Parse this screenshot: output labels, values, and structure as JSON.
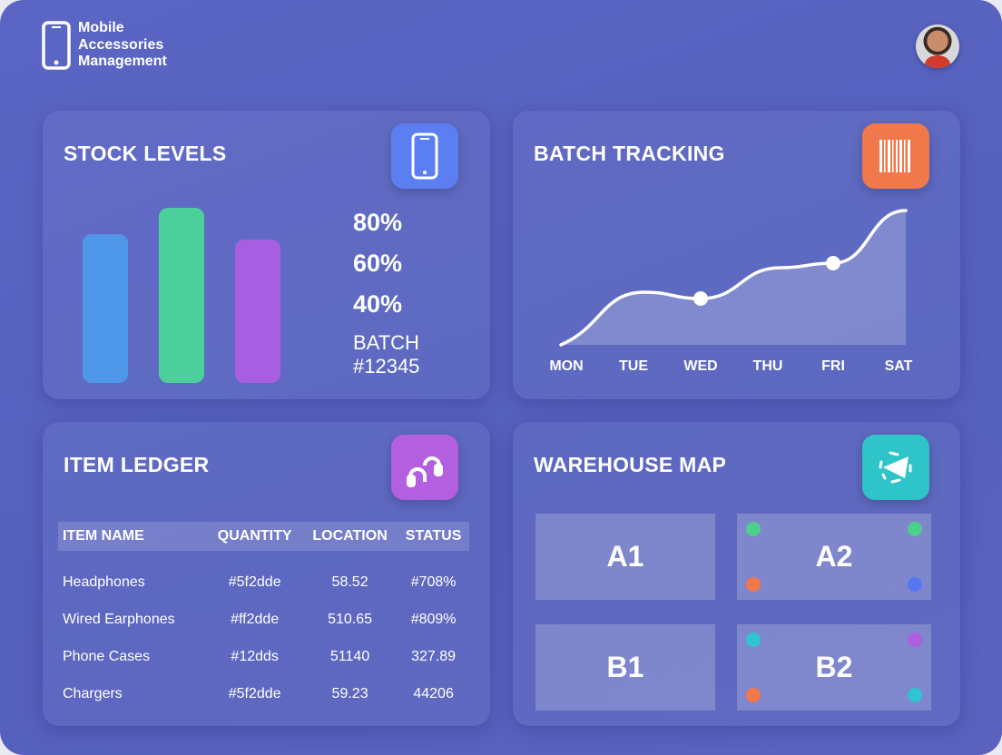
{
  "header": {
    "title_lines": [
      "Mobile",
      "Accessories",
      "Management"
    ],
    "logo_icon": "smartphone-icon",
    "avatar": "user-avatar"
  },
  "stock": {
    "title": "STOCK LEVELS",
    "icon": "smartphone-icon",
    "icon_color": "#5b7ff0",
    "bars": [
      {
        "color": "#4f97e8",
        "level": 0.85
      },
      {
        "color": "#4ccf9a",
        "level": 1.0
      },
      {
        "color": "#a85ee0",
        "level": 0.82
      }
    ],
    "percentages": [
      "80%",
      "60%",
      "40%"
    ],
    "batch_label": "BATCH",
    "batch_number": "#12345"
  },
  "batch_tracking": {
    "title": "BATCH TRACKING",
    "icon": "barcode-icon",
    "icon_color": "#f0784a",
    "chart_data": {
      "type": "area",
      "categories": [
        "MON",
        "TUE",
        "WED",
        "THU",
        "FRI",
        "SAT"
      ],
      "values": [
        0,
        58,
        51,
        85,
        90,
        148
      ],
      "highlighted": [
        "WED",
        "FRI"
      ],
      "grid": false
    }
  },
  "ledger": {
    "title": "ITEM LEDGER",
    "icon": "headphones-icon",
    "icon_color": "#b35fe0",
    "columns": [
      "ITEM NAME",
      "QUANTITY",
      "LOCATION",
      "STATUS"
    ],
    "rows": [
      [
        "Headphones",
        "#5f2dde",
        "58.52",
        "#708%"
      ],
      [
        "Wired Earphones",
        "#ff2dde",
        "510.65",
        "#809%"
      ],
      [
        "Phone Cases",
        "#12dds",
        "51140",
        "327.89"
      ],
      [
        "Chargers",
        "#5f2dde",
        "59.23",
        "44206"
      ]
    ]
  },
  "warehouse": {
    "title": "WAREHOUSE MAP",
    "icon": "location-arrow-icon",
    "icon_color": "#2ec4c8",
    "zones": [
      {
        "label": "A1",
        "dots": []
      },
      {
        "label": "A2",
        "dots": [
          "#4ccf8a",
          "#4ccf8a",
          "#f0784a",
          "#5577f0"
        ]
      },
      {
        "label": "B1",
        "dots": []
      },
      {
        "label": "B2",
        "dots": [
          "#2ec4d0",
          "#b05ee0",
          "#f0784a",
          "#2ec4d0"
        ]
      }
    ]
  }
}
